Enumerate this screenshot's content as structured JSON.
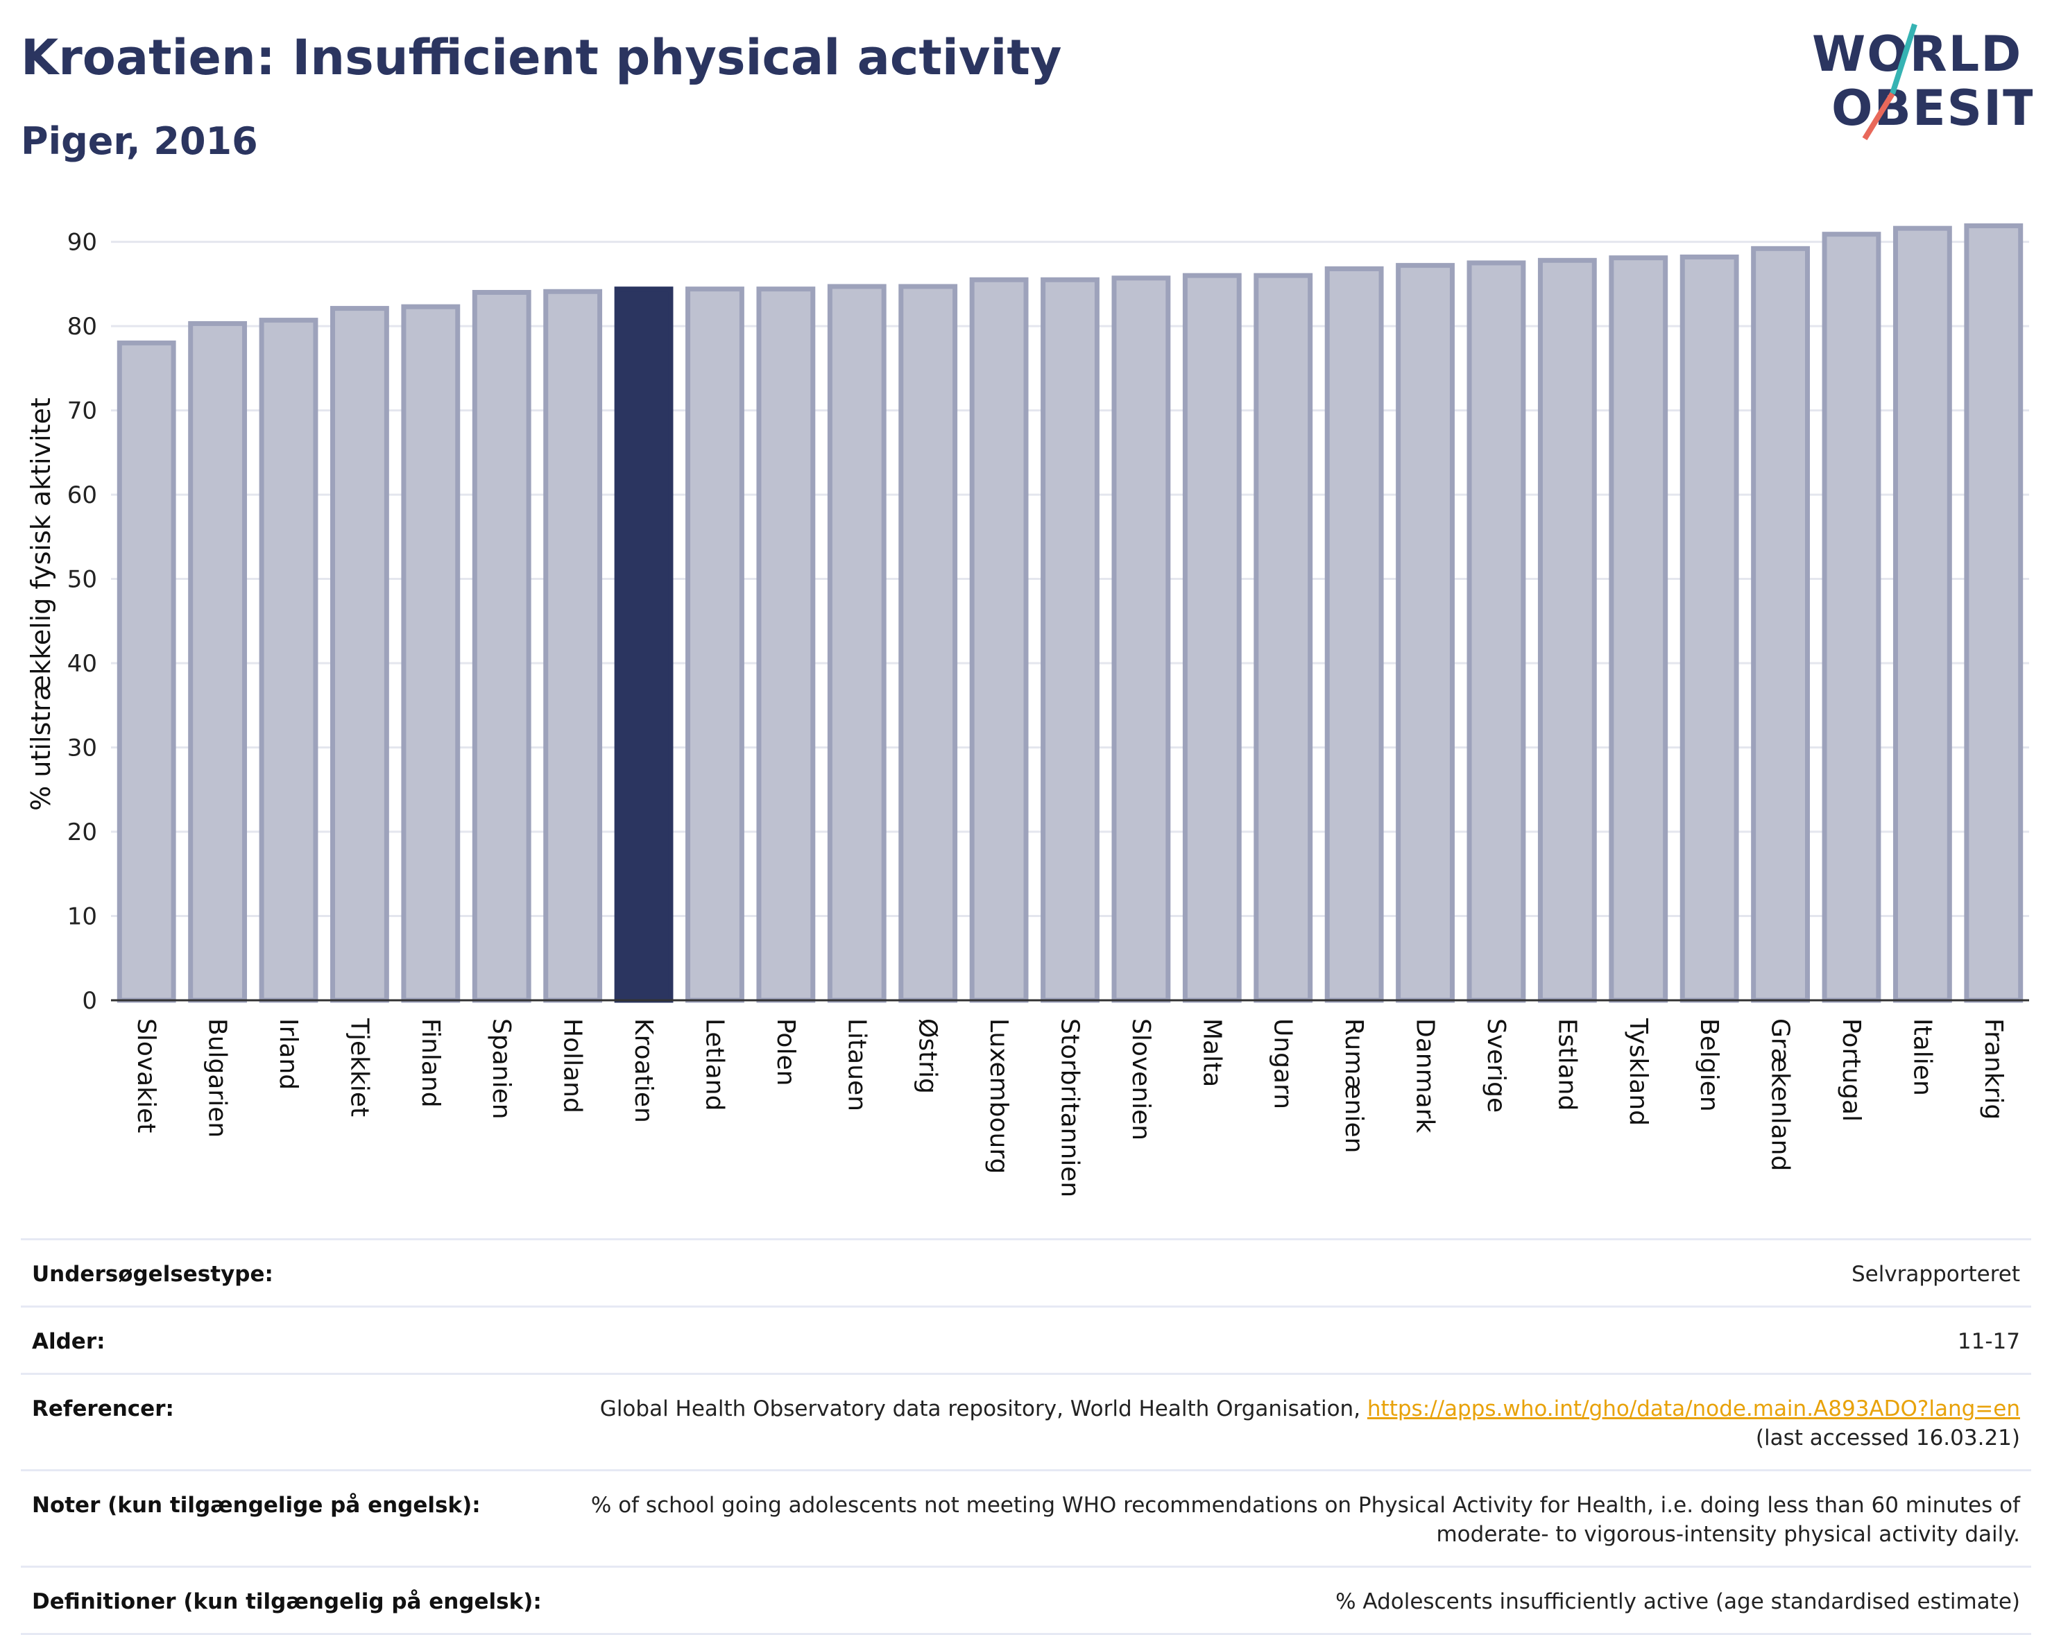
{
  "header": {
    "title": "Kroatien: Insufficient physical activity",
    "subtitle": "Piger, 2016"
  },
  "logo": {
    "line1": "WORLD",
    "line2": "OBESITY"
  },
  "colors": {
    "bar_default": "#bec1d0",
    "bar_stroke": "#9da2bb",
    "bar_highlight": "#2b3560",
    "grid": "#e4e6ee",
    "axis": "#333333",
    "logo_text": "#2b3560",
    "logo_slash_teal": "#36b3b3",
    "logo_slash_coral": "#e8685a"
  },
  "chart_data": {
    "type": "bar",
    "title": "",
    "xlabel": "",
    "ylabel": "% utilstrækkelig fysisk aktivitet",
    "ylim": [
      0,
      94
    ],
    "yticks": [
      0,
      10,
      20,
      30,
      40,
      50,
      60,
      70,
      80,
      90
    ],
    "grid": true,
    "highlight": "Kroatien",
    "categories": [
      "Slovakiet",
      "Bulgarien",
      "Irland",
      "Tjekkiet",
      "Finland",
      "Spanien",
      "Holland",
      "Kroatien",
      "Letland",
      "Polen",
      "Litauen",
      "Østrig",
      "Luxembourg",
      "Storbritannien",
      "Slovenien",
      "Malta",
      "Ungarn",
      "Rumænien",
      "Danmark",
      "Sverige",
      "Estland",
      "Tyskland",
      "Belgien",
      "Grækenland",
      "Portugal",
      "Italien",
      "Frankrig"
    ],
    "values": [
      78.0,
      80.3,
      80.7,
      82.1,
      82.3,
      84.0,
      84.1,
      84.4,
      84.4,
      84.4,
      84.7,
      84.7,
      85.5,
      85.5,
      85.7,
      86.0,
      86.0,
      86.8,
      87.2,
      87.5,
      87.8,
      88.1,
      88.2,
      89.2,
      90.9,
      91.6,
      91.9
    ]
  },
  "meta": {
    "rows": [
      {
        "label": "Undersøgelsestype:",
        "value": "Selvrapporteret"
      },
      {
        "label": "Alder:",
        "value": "11-17"
      },
      {
        "label": "Referencer:",
        "value": "Global Health Observatory data repository, World Health Organisation, ",
        "link": "https://apps.who.int/gho/data/node.main.A893ADO?lang=en",
        "value_after": " (last accessed 16.03.21)"
      },
      {
        "label": "Noter (kun tilgængelige på engelsk):",
        "value": "% of school going adolescents not meeting WHO recommendations on Physical Activity for Health, i.e. doing less than 60 minutes of moderate- to vigorous-intensity physical activity daily."
      },
      {
        "label": "Definitioner (kun tilgængelig på engelsk):",
        "value": "% Adolescents insufficiently active (age standardised estimate)"
      }
    ]
  }
}
